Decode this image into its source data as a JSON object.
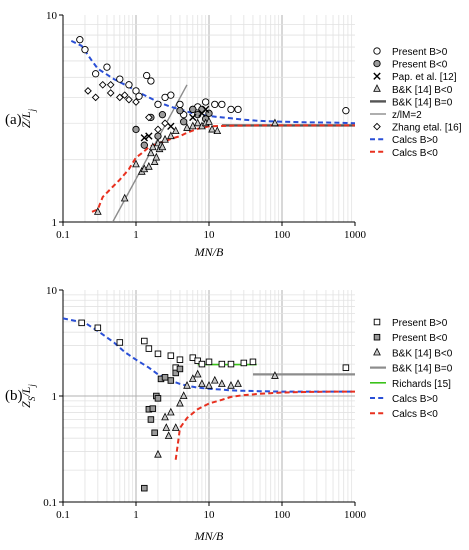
{
  "colors": {
    "blue_calc": "#2a4fd6",
    "red_calc": "#e8301f",
    "grey_line": "#8c8c8c",
    "dark_line": "#555555",
    "green_line": "#3ac21a",
    "marker_fill_grey": "#9b9b9b",
    "marker_fill_light": "#c8c8c8",
    "grid_major": "#b0b0b0",
    "grid_minor": "#e2e2e2"
  },
  "chart_data": [
    {
      "id": "a",
      "type": "scatter",
      "panel_label": "(a)",
      "xlabel": "MN/B",
      "ylabel": "Z/L_j",
      "ylabel_main": "Z/L",
      "ylabel_sub": "j",
      "xscale": "log",
      "yscale": "log",
      "xlim": [
        0.1,
        1000
      ],
      "ylim": [
        1,
        10
      ],
      "x_ticks": [
        "0.1",
        "1",
        "10",
        "100",
        "1000"
      ],
      "y_ticks": [
        "1",
        "10"
      ],
      "legend_position": "right",
      "grid": true,
      "series": [
        {
          "name": "Present B>0",
          "marker": "circle-open",
          "points": [
            [
              0.17,
              7.6
            ],
            [
              0.2,
              6.8
            ],
            [
              0.28,
              5.2
            ],
            [
              0.4,
              5.6
            ],
            [
              0.6,
              4.9
            ],
            [
              0.8,
              4.6
            ],
            [
              1.0,
              4.3
            ],
            [
              1.1,
              4.05
            ],
            [
              1.4,
              5.1
            ],
            [
              1.6,
              4.8
            ],
            [
              2.0,
              3.7
            ],
            [
              2.5,
              4.0
            ],
            [
              3.0,
              4.1
            ],
            [
              4.0,
              3.7
            ],
            [
              4.5,
              3.3
            ],
            [
              6.0,
              3.5
            ],
            [
              7.0,
              3.6
            ],
            [
              9.0,
              3.8
            ],
            [
              12.0,
              3.7
            ],
            [
              15.0,
              3.7
            ],
            [
              20.0,
              3.5
            ],
            [
              25.0,
              3.5
            ],
            [
              750.0,
              3.45
            ]
          ]
        },
        {
          "name": "Present B<0",
          "marker": "circle-grey",
          "points": [
            [
              1.0,
              2.8
            ],
            [
              1.3,
              2.35
            ],
            [
              1.6,
              3.2
            ],
            [
              2.0,
              2.6
            ],
            [
              2.3,
              3.3
            ],
            [
              4.0,
              3.45
            ],
            [
              4.5,
              3.05
            ],
            [
              6.0,
              3.5
            ],
            [
              7.0,
              3.3
            ],
            [
              8.0,
              3.5
            ],
            [
              9.0,
              3.15
            ],
            [
              10.0,
              3.35
            ]
          ]
        },
        {
          "name": "Pap. et al. [12]",
          "marker": "x",
          "points": [
            [
              1.3,
              2.55
            ],
            [
              1.5,
              2.6
            ],
            [
              3.0,
              2.9
            ],
            [
              6.0,
              3.2
            ],
            [
              8.0,
              3.35
            ],
            [
              9.0,
              3.5
            ]
          ]
        },
        {
          "name": "B&K [14] B<0",
          "marker": "triangle-grey",
          "points": [
            [
              0.3,
              1.12
            ],
            [
              0.7,
              1.3
            ],
            [
              1.0,
              1.9
            ],
            [
              1.2,
              1.75
            ],
            [
              1.3,
              1.8
            ],
            [
              1.5,
              1.85
            ],
            [
              1.6,
              2.15
            ],
            [
              1.7,
              2.3
            ],
            [
              1.8,
              1.95
            ],
            [
              1.9,
              2.05
            ],
            [
              2.0,
              2.4
            ],
            [
              2.1,
              2.25
            ],
            [
              2.2,
              2.35
            ],
            [
              2.3,
              2.3
            ],
            [
              2.5,
              2.5
            ],
            [
              3.0,
              2.6
            ],
            [
              3.5,
              2.75
            ],
            [
              5.0,
              2.85
            ],
            [
              6.0,
              2.9
            ],
            [
              7.0,
              3.0
            ],
            [
              8.0,
              2.9
            ],
            [
              9.0,
              3.0
            ],
            [
              10.0,
              3.05
            ],
            [
              11.0,
              2.8
            ],
            [
              13.0,
              2.75
            ],
            [
              80.0,
              3.0
            ]
          ]
        },
        {
          "name": "B&K [14] B=0",
          "style": "line-thick",
          "x": [
            15,
            1000
          ],
          "y": [
            2.93,
            2.93
          ]
        },
        {
          "name": "z/lM=2",
          "style": "line",
          "x": [
            0.48,
            5.0
          ],
          "y": [
            1.0,
            4.6
          ]
        },
        {
          "name": "Zhang etal. [16]",
          "marker": "diamond-open",
          "points": [
            [
              0.22,
              4.3
            ],
            [
              0.28,
              4.0
            ],
            [
              0.35,
              4.6
            ],
            [
              0.45,
              4.2
            ],
            [
              0.45,
              4.6
            ],
            [
              0.6,
              4.0
            ],
            [
              0.7,
              4.1
            ],
            [
              0.8,
              3.9
            ],
            [
              1.0,
              3.8
            ],
            [
              1.5,
              3.2
            ],
            [
              2.0,
              2.8
            ],
            [
              2.5,
              3.0
            ]
          ]
        },
        {
          "name": "Calcs B>0",
          "style": "dashed-blue",
          "x": [
            0.13,
            0.18,
            0.25,
            0.3,
            0.5,
            0.8,
            1.0,
            1.5,
            2.0,
            3.0,
            4.0,
            6.0,
            10.0,
            15.0,
            20.0,
            30.0,
            50.0,
            100.0,
            200.0,
            500.0,
            1000.0
          ],
          "y": [
            7.5,
            7.1,
            6.0,
            5.5,
            4.9,
            4.5,
            4.3,
            4.0,
            3.8,
            3.6,
            3.5,
            3.35,
            3.25,
            3.2,
            3.17,
            3.12,
            3.08,
            3.05,
            3.03,
            3.02,
            3.0
          ]
        },
        {
          "name": "Calcs B<0",
          "style": "dashed-red",
          "x": [
            0.25,
            0.3,
            0.35,
            0.5,
            0.6,
            0.8,
            1.0,
            1.2,
            1.5,
            2.0,
            2.5,
            3.0,
            4.0,
            5.0,
            7.0,
            10.0,
            20.0,
            50.0,
            100.0,
            300.0,
            1000.0
          ],
          "y": [
            1.12,
            1.15,
            1.32,
            1.5,
            1.6,
            1.8,
            2.05,
            2.15,
            2.3,
            2.4,
            2.45,
            2.52,
            2.6,
            2.7,
            2.82,
            2.9,
            2.92,
            2.93,
            2.93,
            2.93,
            2.93
          ]
        }
      ]
    },
    {
      "id": "b",
      "type": "scatter",
      "panel_label": "(b)",
      "xlabel": "MN/B",
      "ylabel": "Z_S/L_j",
      "ylabel_main": "Z",
      "ylabel_sub": "S",
      "ylabel_rest": "/L",
      "ylabel_sub2": "j",
      "xscale": "log",
      "yscale": "log",
      "xlim": [
        0.1,
        1000
      ],
      "ylim": [
        0.1,
        10
      ],
      "x_ticks": [
        "0.1",
        "1",
        "10",
        "100",
        "1000"
      ],
      "y_ticks": [
        "0.1",
        "1",
        "10"
      ],
      "legend_position": "right",
      "grid": true,
      "series": [
        {
          "name": "Present B>0",
          "marker": "square-open",
          "points": [
            [
              0.18,
              4.9
            ],
            [
              0.3,
              4.4
            ],
            [
              0.6,
              3.2
            ],
            [
              1.3,
              3.3
            ],
            [
              1.5,
              2.8
            ],
            [
              2.0,
              2.5
            ],
            [
              3.0,
              2.4
            ],
            [
              3.5,
              1.85
            ],
            [
              4.0,
              2.2
            ],
            [
              6.0,
              2.3
            ],
            [
              7.0,
              2.15
            ],
            [
              8.0,
              2.0
            ],
            [
              10.0,
              2.1
            ],
            [
              15.0,
              2.0
            ],
            [
              20.0,
              2.0
            ],
            [
              30.0,
              2.05
            ],
            [
              40.0,
              2.1
            ],
            [
              750.0,
              1.85
            ]
          ]
        },
        {
          "name": "Present B<0",
          "marker": "square-grey",
          "points": [
            [
              1.3,
              0.135
            ],
            [
              1.5,
              0.75
            ],
            [
              1.6,
              0.6
            ],
            [
              1.7,
              0.76
            ],
            [
              1.8,
              0.45
            ],
            [
              1.9,
              1.0
            ],
            [
              2.0,
              0.95
            ],
            [
              2.2,
              1.45
            ],
            [
              2.5,
              1.5
            ],
            [
              3.0,
              1.4
            ],
            [
              3.5,
              1.65
            ],
            [
              4.0,
              1.8
            ]
          ]
        },
        {
          "name": "B&K [14] B<0",
          "marker": "triangle-grey",
          "points": [
            [
              2.0,
              0.28
            ],
            [
              2.5,
              0.63
            ],
            [
              2.6,
              0.5
            ],
            [
              2.8,
              0.42
            ],
            [
              3.0,
              0.7
            ],
            [
              3.5,
              0.5
            ],
            [
              4.0,
              0.85
            ],
            [
              4.5,
              1.0
            ],
            [
              5.0,
              1.25
            ],
            [
              6.0,
              1.45
            ],
            [
              7.0,
              1.6
            ],
            [
              8.0,
              1.3
            ],
            [
              10.0,
              1.25
            ],
            [
              12.0,
              1.4
            ],
            [
              15.0,
              1.3
            ],
            [
              20.0,
              1.25
            ],
            [
              25.0,
              1.3
            ],
            [
              80.0,
              1.55
            ]
          ]
        },
        {
          "name": "B&K [14] B=0",
          "style": "line-thick-grey",
          "x": [
            40,
            1000
          ],
          "y": [
            1.6,
            1.6
          ]
        },
        {
          "name": "Richards [15]",
          "style": "line-green",
          "x": [
            7,
            45
          ],
          "y": [
            1.98,
            1.98
          ]
        },
        {
          "name": "Calcs B>0",
          "style": "dashed-blue",
          "x": [
            0.1,
            0.2,
            0.3,
            0.5,
            0.7,
            1.0,
            1.5,
            2.0,
            3.0,
            4.0,
            5.0,
            7.0,
            10.0,
            15.0,
            20.0,
            30.0,
            50.0,
            100.0,
            300.0,
            1000.0
          ],
          "y": [
            5.4,
            4.9,
            4.1,
            3.2,
            2.6,
            2.2,
            1.85,
            1.6,
            1.4,
            1.3,
            1.25,
            1.2,
            1.17,
            1.15,
            1.13,
            1.12,
            1.11,
            1.1,
            1.1,
            1.1
          ]
        },
        {
          "name": "Calcs B<0",
          "style": "dashed-red",
          "x": [
            3.5,
            4.0,
            5.0,
            7.0,
            10.0,
            15.0,
            20.0,
            30.0,
            50.0,
            100.0,
            200.0,
            500.0,
            1000.0
          ],
          "y": [
            0.25,
            0.5,
            0.62,
            0.75,
            0.85,
            0.92,
            0.98,
            1.02,
            1.05,
            1.08,
            1.09,
            1.1,
            1.1
          ]
        }
      ]
    }
  ]
}
